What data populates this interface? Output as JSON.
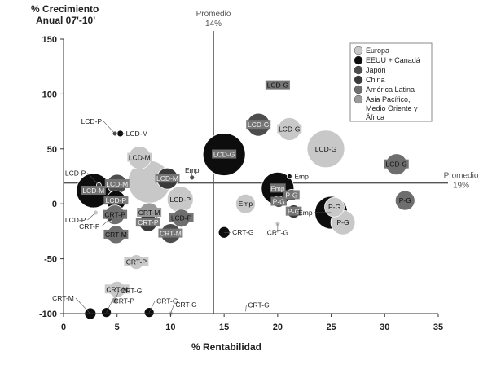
{
  "chart_data": {
    "type": "scatter",
    "ylabel": "% Crecimiento\nAnual 07'-10'",
    "xlabel": "% Rentabilidad",
    "xlim": [
      0,
      35
    ],
    "ylim": [
      -100,
      150
    ],
    "xticks": [
      0,
      5,
      10,
      15,
      20,
      25,
      30,
      35
    ],
    "yticks": [
      -100,
      -50,
      0,
      50,
      100,
      150
    ],
    "reference_lines": [
      {
        "axis": "x",
        "value": 14,
        "label": "Promedio\n14%"
      },
      {
        "axis": "y",
        "value": 19,
        "label": "Promedio\n19%"
      }
    ],
    "legend": {
      "placement": "top-right",
      "entries": [
        {
          "name": "Europa",
          "color": "#c8c8c8"
        },
        {
          "name": "EEUU + Canadá",
          "color": "#0d0d0d"
        },
        {
          "name": "Japón",
          "color": "#4d4d4d"
        },
        {
          "name": "China",
          "color": "#3a3a3a"
        },
        {
          "name": "América Latina",
          "color": "#6e6e6e"
        },
        {
          "name": "Asia Pacífico, Medio Oriente y África",
          "color": "#9a9a9a"
        }
      ]
    },
    "colors": {
      "Europa": "#c8c8c8",
      "EEUU": "#0d0d0d",
      "Japon": "#4d4d4d",
      "China": "#3a3a3a",
      "AL": "#6e6e6e",
      "APMOA": "#9a9a9a"
    },
    "points": [
      {
        "x": 15,
        "y": 45,
        "r": 26,
        "region": "EEUU",
        "label": "LCD-G",
        "pos": "c"
      },
      {
        "x": 18.2,
        "y": 72,
        "r": 14,
        "region": "Japon",
        "label": "LCD-G",
        "pos": "c"
      },
      {
        "x": 21.1,
        "y": 68,
        "r": 14,
        "region": "Europa",
        "label": "LCD-G",
        "pos": "c"
      },
      {
        "x": 24.5,
        "y": 50,
        "r": 23,
        "region": "Europa",
        "label": "LCD-G",
        "pos": "c"
      },
      {
        "x": 31.1,
        "y": 36,
        "r": 13,
        "region": "AL",
        "label": "LCD-G",
        "pos": "c"
      },
      {
        "x": 20,
        "y": 108,
        "r": 3,
        "region": "AL",
        "label": "LCD-G",
        "pos": "c"
      },
      {
        "x": 7.1,
        "y": 42,
        "r": 14,
        "region": "Europa",
        "label": "LCD-M",
        "pos": "c"
      },
      {
        "x": 5.3,
        "y": 64,
        "r": 4,
        "region": "EEUU",
        "label": "LCD-M",
        "pos": "r"
      },
      {
        "x": 4.8,
        "y": 64,
        "r": 3,
        "region": "Japon",
        "label": "LCD-P",
        "pos": "tl"
      },
      {
        "x": 8,
        "y": 20,
        "r": 26,
        "region": "Europa",
        "label": "",
        "pos": "c"
      },
      {
        "x": 5,
        "y": 18,
        "r": 12,
        "region": "Japon",
        "label": "LCD-M",
        "pos": "c"
      },
      {
        "x": 3.3,
        "y": 17,
        "r": 3,
        "region": "China",
        "label": "LCD-P",
        "pos": "tl"
      },
      {
        "x": 2.8,
        "y": 12,
        "r": 21,
        "region": "EEUU",
        "label": "LCD-M",
        "pos": "c"
      },
      {
        "x": 4.9,
        "y": 3,
        "r": 12,
        "region": "EEUU",
        "label": "LCD-P",
        "pos": "c"
      },
      {
        "x": 9.7,
        "y": 23,
        "r": 13,
        "region": "China",
        "label": "LCD-M",
        "pos": "c"
      },
      {
        "x": 10.9,
        "y": 4,
        "r": 16,
        "region": "Europa",
        "label": "LCD-P",
        "pos": "c"
      },
      {
        "x": 12,
        "y": 24,
        "r": 3,
        "region": "Japon",
        "label": "Emp",
        "pos": "t"
      },
      {
        "x": 8,
        "y": -8,
        "r": 12,
        "region": "APMOA",
        "label": "CRT-M",
        "pos": "c"
      },
      {
        "x": 7.9,
        "y": -17,
        "r": 11,
        "region": "China",
        "label": "CRT-P",
        "pos": "c"
      },
      {
        "x": 11,
        "y": -13,
        "r": 11,
        "region": "AL",
        "label": "LCD-P",
        "pos": "c"
      },
      {
        "x": 4.8,
        "y": -10,
        "r": 12,
        "region": "AL",
        "label": "CRT-P",
        "pos": "c"
      },
      {
        "x": 4.9,
        "y": -28,
        "r": 11,
        "region": "AL",
        "label": "CRT-M",
        "pos": "c"
      },
      {
        "x": 10,
        "y": -27,
        "r": 12,
        "region": "Japon",
        "label": "CRT-M",
        "pos": "c"
      },
      {
        "x": 3,
        "y": -8,
        "r": 3,
        "region": "Europa",
        "label": "LCD-P",
        "pos": "bl"
      },
      {
        "x": 4.3,
        "y": -14,
        "r": 3,
        "region": "China",
        "label": "CRT-P",
        "pos": "bl"
      },
      {
        "x": 6.8,
        "y": -53,
        "r": 9,
        "region": "Europa",
        "label": "CRT-P",
        "pos": "c"
      },
      {
        "x": 5,
        "y": -78,
        "r": 10,
        "region": "Europa",
        "label": "CRT-M",
        "pos": "c"
      },
      {
        "x": 4.8,
        "y": -88,
        "r": 4,
        "region": "APMOA",
        "label": "CRT-G",
        "pos": "tr"
      },
      {
        "x": 2.5,
        "y": -100,
        "r": 7,
        "region": "EEUU",
        "label": "CRT-M",
        "pos": "tl"
      },
      {
        "x": 4,
        "y": -99,
        "r": 6,
        "region": "EEUU",
        "label": "CRT-P",
        "pos": "tr"
      },
      {
        "x": 8,
        "y": -99,
        "r": 6,
        "region": "EEUU",
        "label": "CRT-G",
        "pos": "tr"
      },
      {
        "x": 10,
        "y": -100,
        "r": 3,
        "region": "Europa",
        "label": "CRT-G",
        "pos": "tr"
      },
      {
        "x": 15,
        "y": -26,
        "r": 7,
        "region": "EEUU",
        "label": "CRT-G",
        "pos": "r"
      },
      {
        "x": 17,
        "y": 0,
        "r": 12,
        "region": "Europa",
        "label": "Emp",
        "pos": "c"
      },
      {
        "x": 20,
        "y": 14,
        "r": 20,
        "region": "EEUU",
        "label": "Emp",
        "pos": "c"
      },
      {
        "x": 20.1,
        "y": 2,
        "r": 7,
        "region": "Japon",
        "label": "P-G",
        "pos": "c"
      },
      {
        "x": 21.3,
        "y": 8,
        "r": 7,
        "region": "Japon",
        "label": "P-G",
        "pos": "c"
      },
      {
        "x": 20,
        "y": -18,
        "r": 3,
        "region": "Europa",
        "label": "CRT-G",
        "pos": "b"
      },
      {
        "x": 21.1,
        "y": 25,
        "r": 3,
        "region": "EEUU",
        "label": "Emp",
        "pos": "r"
      },
      {
        "x": 21.5,
        "y": -7,
        "r": 8,
        "region": "China",
        "label": "P-G",
        "pos": "c"
      },
      {
        "x": 25,
        "y": -8,
        "r": 20,
        "region": "EEUU",
        "label": "Emp",
        "pos": "l"
      },
      {
        "x": 25.3,
        "y": -3,
        "r": 12,
        "region": "Europa",
        "label": "P-G",
        "pos": "c"
      },
      {
        "x": 26.1,
        "y": -17,
        "r": 15,
        "region": "Europa",
        "label": "P-G",
        "pos": "c"
      },
      {
        "x": 31.9,
        "y": 3,
        "r": 12,
        "region": "AL",
        "label": "P-G",
        "pos": "c"
      },
      {
        "x": 17,
        "y": -98,
        "r": 0,
        "region": "APMOA",
        "label": "CRT-G",
        "pos": "tr"
      }
    ]
  }
}
